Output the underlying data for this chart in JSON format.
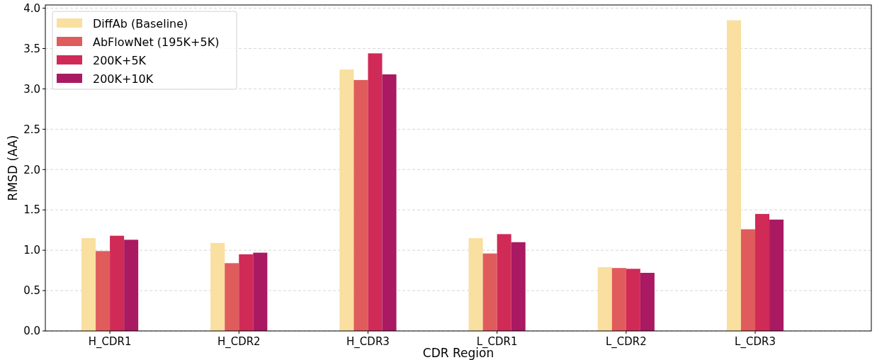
{
  "chart_data": {
    "type": "bar",
    "xlabel": "CDR Region",
    "ylabel": "RMSD (AA)",
    "categories": [
      "H_CDR1",
      "H_CDR2",
      "H_CDR3",
      "L_CDR1",
      "L_CDR2",
      "L_CDR3"
    ],
    "series": [
      {
        "name": "DiffAb (Baseline)",
        "color": "#f9dfa0",
        "values": [
          1.15,
          1.09,
          3.24,
          1.15,
          0.79,
          3.85
        ]
      },
      {
        "name": "AbFlowNet (195K+5K)",
        "color": "#e05c5c",
        "values": [
          0.99,
          0.84,
          3.11,
          0.96,
          0.78,
          1.26
        ]
      },
      {
        "name": "200K+5K",
        "color": "#d02a57",
        "values": [
          1.18,
          0.95,
          3.44,
          1.2,
          0.77,
          1.45
        ]
      },
      {
        "name": "200K+10K",
        "color": "#a91a62",
        "values": [
          1.13,
          0.97,
          3.18,
          1.1,
          0.72,
          1.38
        ]
      }
    ],
    "ylim": [
      0,
      4.04
    ],
    "yticks": [
      {
        "value": 0,
        "label": "0.0"
      },
      {
        "value": 0.5,
        "label": "0.5"
      },
      {
        "value": 1,
        "label": "1.0"
      },
      {
        "value": 1.5,
        "label": "1.5"
      },
      {
        "value": 2,
        "label": "2.0"
      },
      {
        "value": 2.5,
        "label": "2.5"
      },
      {
        "value": 3,
        "label": "3.0"
      },
      {
        "value": 3.5,
        "label": "3.5"
      },
      {
        "value": 4,
        "label": "4.0"
      }
    ],
    "grid": "y",
    "legend": "top left"
  }
}
